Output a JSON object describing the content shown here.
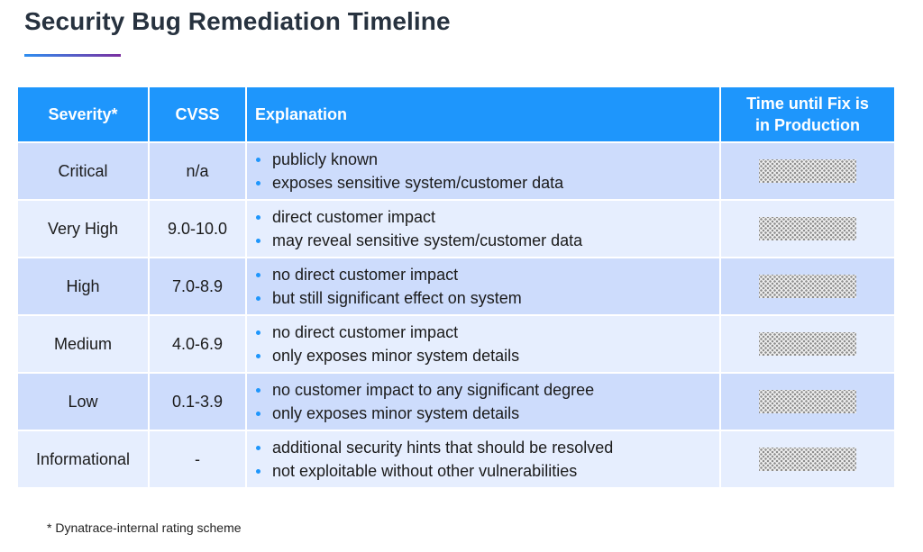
{
  "title": "Security Bug Remediation Timeline",
  "colors": {
    "header_bg": "#1e96fc",
    "row_odd": "#cddcfc",
    "row_even": "#e6eefe",
    "title": "#27323f",
    "bullet": "#1e96fc"
  },
  "table": {
    "headers": {
      "severity": "Severity*",
      "cvss": "CVSS",
      "explanation": "Explanation",
      "time_line1": "Time until Fix is",
      "time_line2": "in Production"
    },
    "rows": [
      {
        "severity": "Critical",
        "cvss": "n/a",
        "bullets": [
          "publicly known",
          "exposes sensitive system/customer data"
        ],
        "time": "redacted"
      },
      {
        "severity": "Very High",
        "cvss": "9.0-10.0",
        "bullets": [
          "direct customer impact",
          "may reveal sensitive system/customer data"
        ],
        "time": "redacted"
      },
      {
        "severity": "High",
        "cvss": "7.0-8.9",
        "bullets": [
          "no direct customer impact",
          "but still significant effect on system"
        ],
        "time": "redacted"
      },
      {
        "severity": "Medium",
        "cvss": "4.0-6.9",
        "bullets": [
          "no direct customer impact",
          "only exposes minor system details"
        ],
        "time": "redacted"
      },
      {
        "severity": "Low",
        "cvss": "0.1-3.9",
        "bullets": [
          "no customer impact to any significant degree",
          "only exposes minor system details"
        ],
        "time": "redacted"
      },
      {
        "severity": "Informational",
        "cvss": "-",
        "bullets": [
          "additional security hints that should be resolved",
          "not exploitable without other vulnerabilities"
        ],
        "time": "redacted"
      }
    ]
  },
  "footnote": "* Dynatrace-internal rating scheme"
}
